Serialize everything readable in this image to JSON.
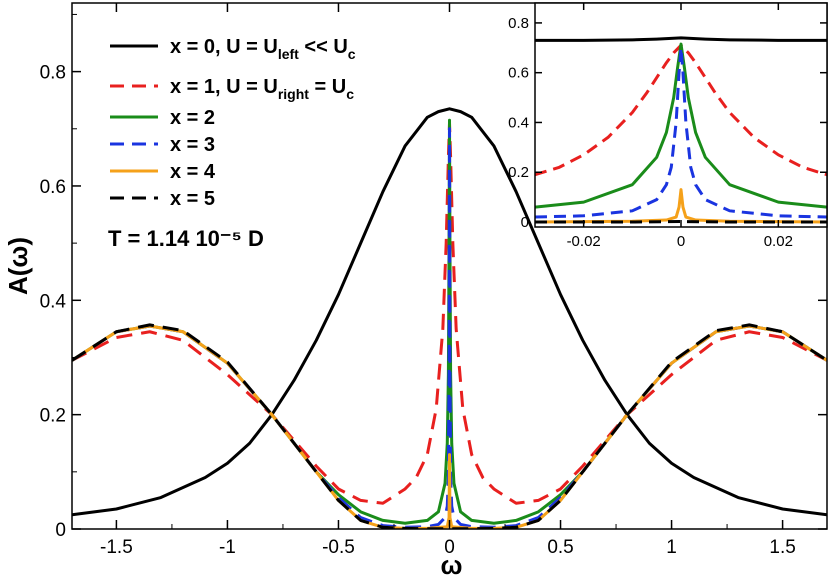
{
  "chart_data": [
    {
      "id": "main",
      "type": "line",
      "title": "",
      "xlabel": "ω",
      "ylabel": "A(ω)",
      "xlim": [
        -1.7,
        1.7
      ],
      "ylim": [
        0,
        0.92
      ],
      "xticks": [
        -1.5,
        -1,
        -0.5,
        0,
        0.5,
        1,
        1.5
      ],
      "xtick_labels": [
        "-1.5",
        "-1",
        "-0.5",
        "0",
        "0.5",
        "1",
        "1.5"
      ],
      "yticks": [
        0,
        0.2,
        0.4,
        0.6,
        0.8
      ],
      "ytick_labels": [
        "0",
        "0.2",
        "0.4",
        "0.6",
        "0.8"
      ],
      "legend_position": "top-left",
      "annotation": "T = 1.14 10⁻⁵ D",
      "series": [
        {
          "name": "x = 0",
          "legend": {
            "main": "x = 0, U = U",
            "sub": "left",
            "tail": " << U",
            "sub2": "c"
          },
          "color": "#000000",
          "dash": "solid",
          "x": [
            -1.7,
            -1.5,
            -1.3,
            -1.1,
            -1.0,
            -0.9,
            -0.8,
            -0.7,
            -0.6,
            -0.5,
            -0.4,
            -0.3,
            -0.2,
            -0.1,
            -0.05,
            0,
            0.05,
            0.1,
            0.2,
            0.3,
            0.4,
            0.5,
            0.6,
            0.7,
            0.8,
            0.9,
            1.0,
            1.1,
            1.3,
            1.5,
            1.7
          ],
          "y": [
            0.025,
            0.035,
            0.055,
            0.09,
            0.115,
            0.15,
            0.2,
            0.26,
            0.33,
            0.41,
            0.5,
            0.59,
            0.67,
            0.72,
            0.73,
            0.735,
            0.73,
            0.72,
            0.67,
            0.59,
            0.5,
            0.41,
            0.33,
            0.26,
            0.2,
            0.15,
            0.115,
            0.09,
            0.055,
            0.035,
            0.025
          ]
        },
        {
          "name": "x = 1",
          "legend": {
            "main": "x = 1, U = U",
            "sub": "right",
            "tail": " = U",
            "sub2": "c"
          },
          "color": "#e8201f",
          "dash": "dashed",
          "x": [
            -1.7,
            -1.5,
            -1.35,
            -1.2,
            -1.0,
            -0.8,
            -0.6,
            -0.5,
            -0.4,
            -0.3,
            -0.2,
            -0.15,
            -0.1,
            -0.06,
            -0.03,
            -0.015,
            -0.005,
            0,
            0.005,
            0.015,
            0.03,
            0.06,
            0.1,
            0.15,
            0.2,
            0.3,
            0.4,
            0.5,
            0.6,
            0.8,
            1.0,
            1.2,
            1.35,
            1.5,
            1.7
          ],
          "y": [
            0.295,
            0.335,
            0.345,
            0.33,
            0.27,
            0.2,
            0.11,
            0.07,
            0.05,
            0.045,
            0.07,
            0.09,
            0.13,
            0.21,
            0.35,
            0.5,
            0.65,
            0.71,
            0.65,
            0.5,
            0.35,
            0.21,
            0.13,
            0.09,
            0.07,
            0.045,
            0.05,
            0.07,
            0.11,
            0.2,
            0.27,
            0.33,
            0.345,
            0.335,
            0.295
          ]
        },
        {
          "name": "x = 2",
          "legend": {
            "main": "x = 2"
          },
          "color": "#1a8c1a",
          "dash": "solid",
          "x": [
            -1.7,
            -1.5,
            -1.35,
            -1.2,
            -1.0,
            -0.8,
            -0.6,
            -0.5,
            -0.4,
            -0.3,
            -0.2,
            -0.1,
            -0.05,
            -0.02,
            -0.01,
            -0.005,
            -0.002,
            0,
            0.002,
            0.005,
            0.01,
            0.02,
            0.05,
            0.1,
            0.2,
            0.3,
            0.4,
            0.5,
            0.6,
            0.8,
            1.0,
            1.2,
            1.35,
            1.5,
            1.7
          ],
          "y": [
            0.295,
            0.345,
            0.355,
            0.345,
            0.29,
            0.2,
            0.1,
            0.06,
            0.03,
            0.015,
            0.01,
            0.015,
            0.03,
            0.08,
            0.15,
            0.27,
            0.5,
            0.715,
            0.5,
            0.27,
            0.15,
            0.08,
            0.03,
            0.015,
            0.01,
            0.015,
            0.03,
            0.06,
            0.1,
            0.2,
            0.29,
            0.345,
            0.355,
            0.345,
            0.295
          ]
        },
        {
          "name": "x = 3",
          "legend": {
            "main": "x = 3"
          },
          "color": "#1a34e0",
          "dash": "dashed",
          "x": [
            -1.7,
            -1.5,
            -1.35,
            -1.2,
            -1.0,
            -0.8,
            -0.6,
            -0.5,
            -0.4,
            -0.3,
            -0.2,
            -0.1,
            -0.05,
            -0.02,
            -0.01,
            -0.005,
            -0.002,
            0,
            0.002,
            0.005,
            0.01,
            0.02,
            0.05,
            0.1,
            0.2,
            0.3,
            0.4,
            0.5,
            0.6,
            0.8,
            1.0,
            1.2,
            1.35,
            1.5,
            1.7
          ],
          "y": [
            0.295,
            0.345,
            0.355,
            0.345,
            0.29,
            0.2,
            0.1,
            0.055,
            0.02,
            0.006,
            0.003,
            0.004,
            0.008,
            0.02,
            0.04,
            0.09,
            0.28,
            0.7,
            0.28,
            0.09,
            0.04,
            0.02,
            0.008,
            0.004,
            0.003,
            0.006,
            0.02,
            0.055,
            0.1,
            0.2,
            0.29,
            0.345,
            0.355,
            0.345,
            0.295
          ]
        },
        {
          "name": "x = 4",
          "legend": {
            "main": "x = 4"
          },
          "color": "#f5a11a",
          "dash": "solid",
          "x": [
            -1.7,
            -1.5,
            -1.35,
            -1.2,
            -1.0,
            -0.8,
            -0.6,
            -0.5,
            -0.4,
            -0.3,
            -0.2,
            -0.1,
            -0.01,
            -0.002,
            0,
            0.002,
            0.01,
            0.1,
            0.2,
            0.3,
            0.4,
            0.5,
            0.6,
            0.8,
            1.0,
            1.2,
            1.35,
            1.5,
            1.7
          ],
          "y": [
            0.295,
            0.345,
            0.355,
            0.345,
            0.29,
            0.2,
            0.1,
            0.05,
            0.015,
            0.003,
            0.001,
            0.001,
            0.004,
            0.02,
            0.13,
            0.02,
            0.004,
            0.001,
            0.001,
            0.003,
            0.015,
            0.05,
            0.1,
            0.2,
            0.29,
            0.345,
            0.355,
            0.345,
            0.295
          ]
        },
        {
          "name": "x = 5",
          "legend": {
            "main": "x = 5"
          },
          "color": "#000000",
          "dash": "dashed",
          "x": [
            -1.7,
            -1.5,
            -1.35,
            -1.2,
            -1.0,
            -0.8,
            -0.6,
            -0.5,
            -0.4,
            -0.3,
            -0.2,
            -0.1,
            0,
            0.1,
            0.2,
            0.3,
            0.4,
            0.5,
            0.6,
            0.8,
            1.0,
            1.2,
            1.35,
            1.5,
            1.7
          ],
          "y": [
            0.295,
            0.345,
            0.357,
            0.347,
            0.292,
            0.2,
            0.1,
            0.05,
            0.015,
            0.003,
            0.001,
            0.0005,
            0.0005,
            0.0005,
            0.001,
            0.003,
            0.015,
            0.05,
            0.1,
            0.2,
            0.292,
            0.347,
            0.357,
            0.345,
            0.295
          ]
        }
      ]
    },
    {
      "id": "inset",
      "type": "line",
      "title": "",
      "xlabel": "",
      "ylabel": "",
      "xlim": [
        -0.03,
        0.03
      ],
      "ylim": [
        -0.02,
        0.88
      ],
      "xticks": [
        -0.02,
        0,
        0.02
      ],
      "xtick_labels": [
        "-0.02",
        "0",
        "0.02"
      ],
      "yticks": [
        0,
        0.2,
        0.4,
        0.6,
        0.8
      ],
      "ytick_labels": [
        "0",
        "0.2",
        "0.4",
        "0.6",
        "0.8"
      ],
      "series": [
        {
          "name": "x = 0",
          "color": "#000000",
          "dash": "solid",
          "x": [
            -0.03,
            -0.02,
            -0.01,
            -0.005,
            0,
            0.005,
            0.01,
            0.02,
            0.03
          ],
          "y": [
            0.73,
            0.73,
            0.732,
            0.735,
            0.74,
            0.735,
            0.732,
            0.73,
            0.73
          ]
        },
        {
          "name": "x = 1",
          "color": "#e8201f",
          "dash": "dashed",
          "x": [
            -0.03,
            -0.025,
            -0.02,
            -0.015,
            -0.01,
            -0.007,
            -0.005,
            -0.003,
            -0.0015,
            0,
            0.0015,
            0.003,
            0.005,
            0.007,
            0.01,
            0.015,
            0.02,
            0.025,
            0.03
          ],
          "y": [
            0.19,
            0.22,
            0.27,
            0.34,
            0.44,
            0.52,
            0.58,
            0.64,
            0.68,
            0.71,
            0.68,
            0.64,
            0.58,
            0.52,
            0.44,
            0.34,
            0.27,
            0.22,
            0.19
          ]
        },
        {
          "name": "x = 2",
          "color": "#1a8c1a",
          "dash": "solid",
          "x": [
            -0.03,
            -0.02,
            -0.01,
            -0.005,
            -0.003,
            -0.0015,
            -0.0007,
            0,
            0.0007,
            0.0015,
            0.003,
            0.005,
            0.01,
            0.02,
            0.03
          ],
          "y": [
            0.06,
            0.08,
            0.15,
            0.26,
            0.36,
            0.5,
            0.62,
            0.715,
            0.62,
            0.5,
            0.36,
            0.26,
            0.15,
            0.08,
            0.06
          ]
        },
        {
          "name": "x = 3",
          "color": "#1a34e0",
          "dash": "dashed",
          "x": [
            -0.03,
            -0.02,
            -0.01,
            -0.005,
            -0.003,
            -0.002,
            -0.001,
            -0.0004,
            0,
            0.0004,
            0.001,
            0.002,
            0.003,
            0.005,
            0.01,
            0.02,
            0.03
          ],
          "y": [
            0.02,
            0.025,
            0.045,
            0.09,
            0.15,
            0.22,
            0.4,
            0.6,
            0.7,
            0.6,
            0.4,
            0.22,
            0.15,
            0.09,
            0.045,
            0.025,
            0.02
          ]
        },
        {
          "name": "x = 4",
          "color": "#f5a11a",
          "dash": "solid",
          "x": [
            -0.03,
            -0.01,
            -0.003,
            -0.001,
            -0.0004,
            0,
            0.0004,
            0.001,
            0.003,
            0.01,
            0.03
          ],
          "y": [
            0.0,
            0.003,
            0.008,
            0.02,
            0.06,
            0.13,
            0.06,
            0.02,
            0.008,
            0.003,
            0.0
          ]
        },
        {
          "name": "x = 5",
          "color": "#000000",
          "dash": "dashed",
          "x": [
            -0.03,
            -0.01,
            0,
            0.01,
            0.03
          ],
          "y": [
            0.0,
            0.0,
            0.002,
            0.0,
            0.0
          ]
        }
      ]
    }
  ]
}
